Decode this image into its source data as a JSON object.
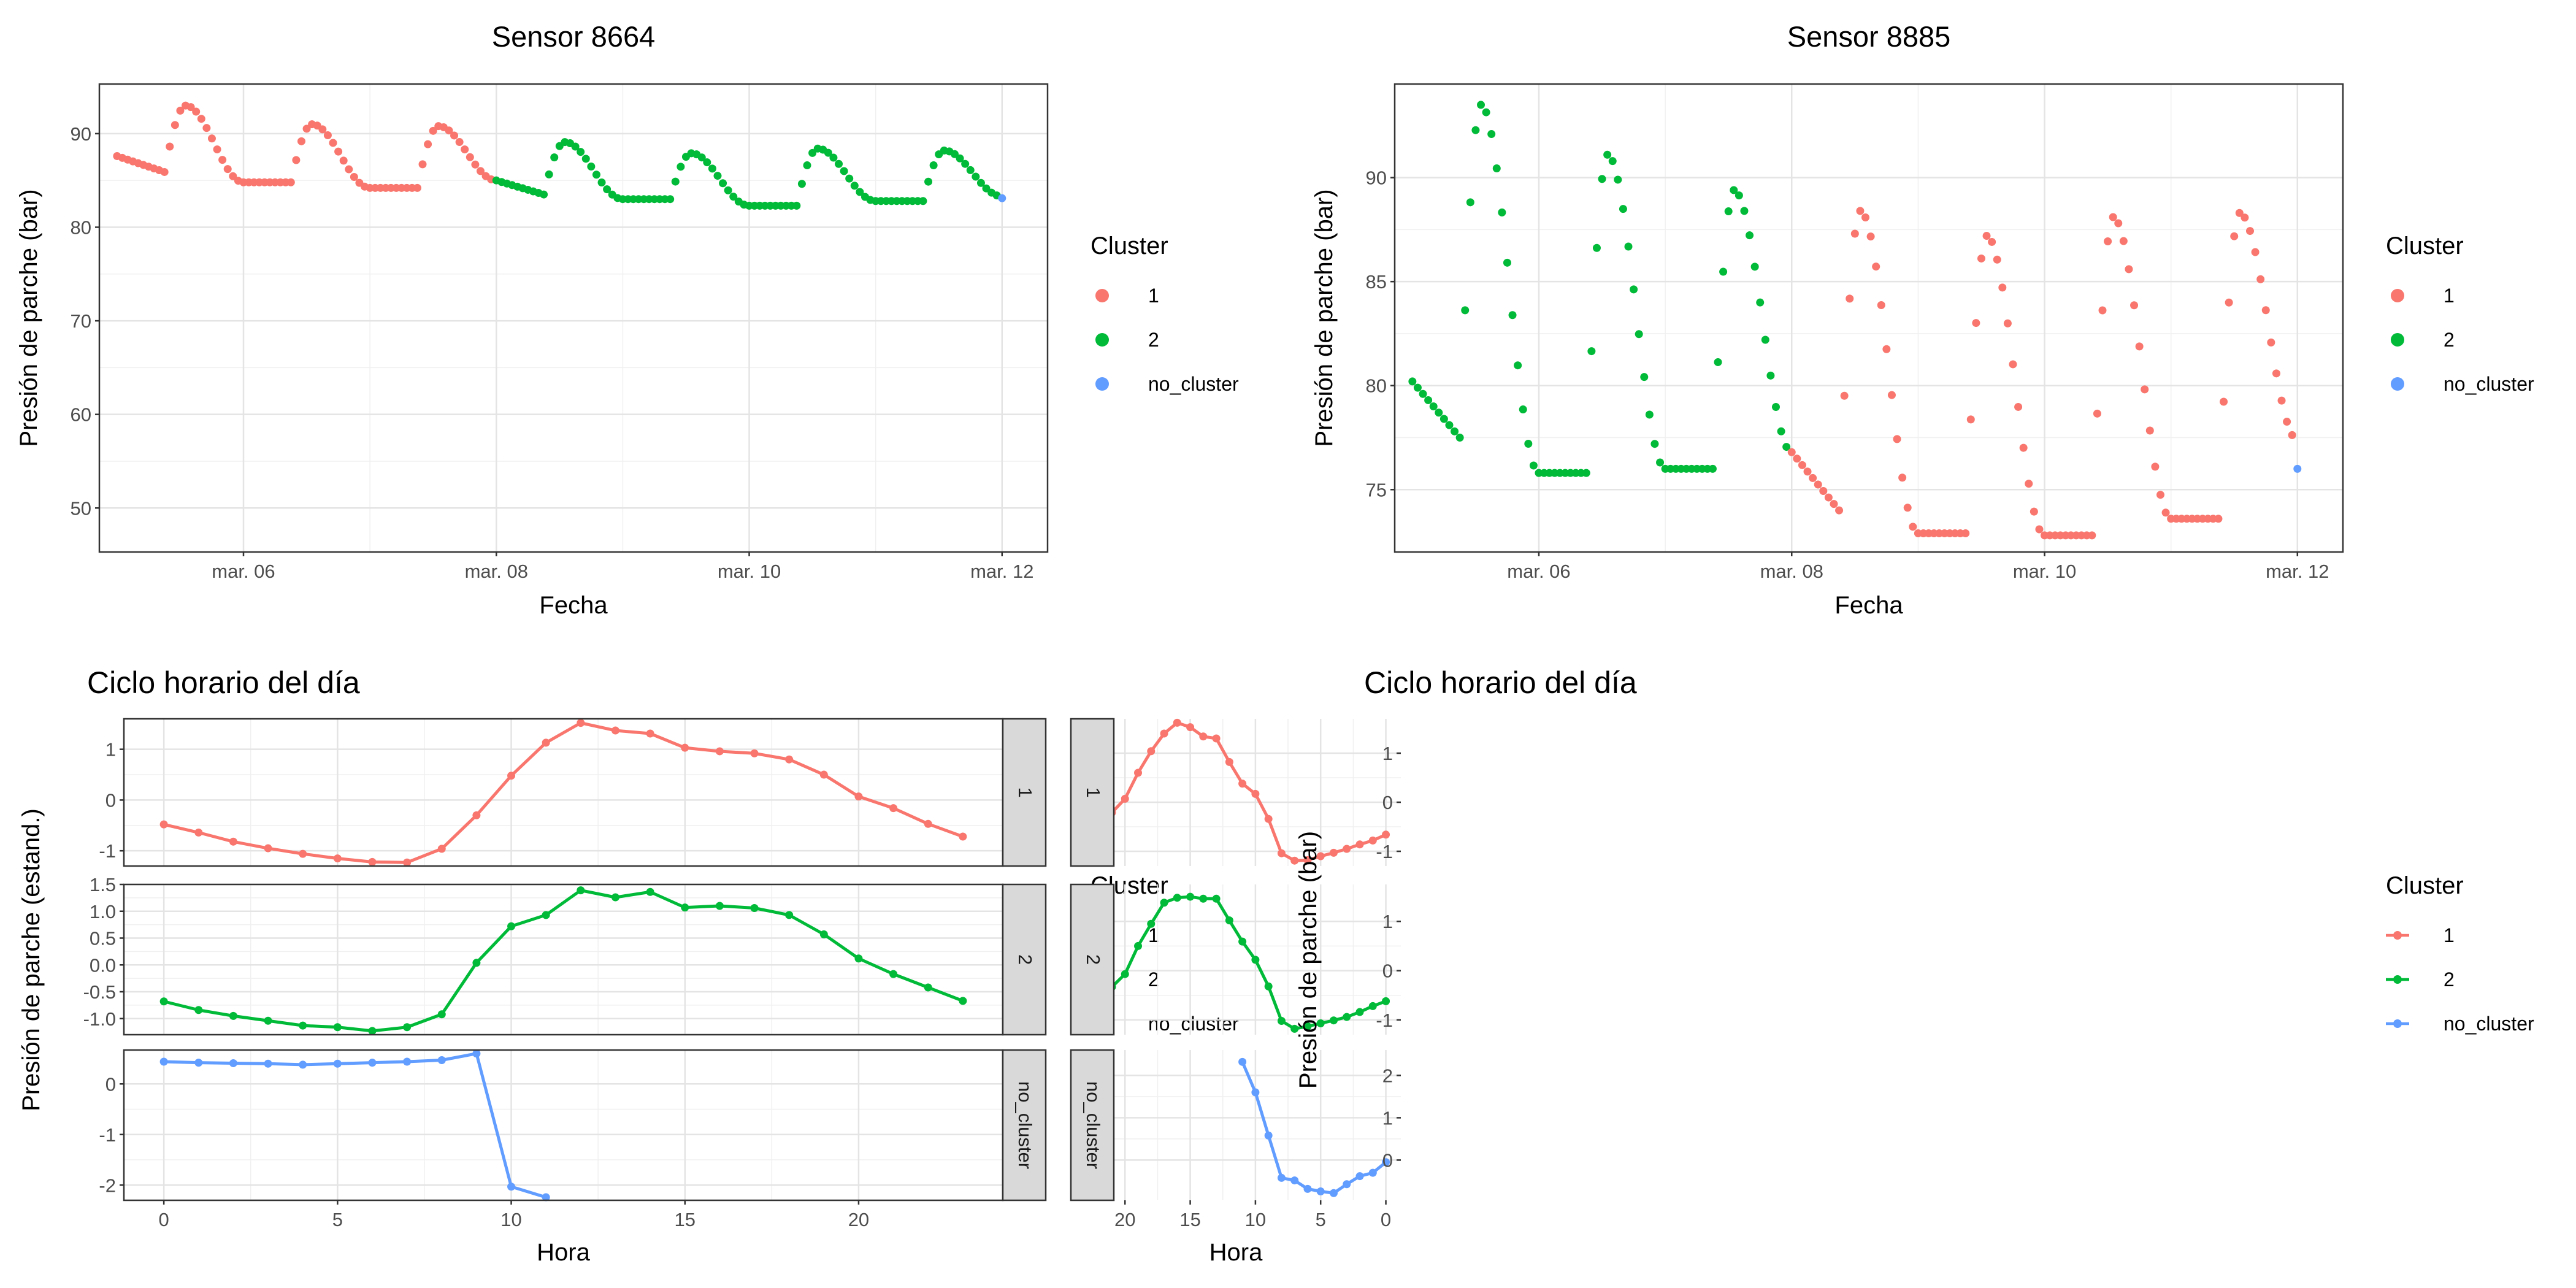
{
  "colors": {
    "cluster_1": "#F8766D",
    "cluster_2": "#00BA38",
    "no_cluster": "#619CFF"
  },
  "legend": {
    "title": "Cluster",
    "entries": [
      "1",
      "2",
      "no_cluster"
    ]
  },
  "chart_data": [
    {
      "type": "scatter",
      "title": "Sensor 8664",
      "xlabel": "Fecha",
      "ylabel": "Presión de parche (bar)",
      "x_unit": "days since mar. 05 00:00",
      "xlim": [
        -0.14,
        7.36
      ],
      "ylim": [
        45.3,
        95.3
      ],
      "x_ticks": [
        1,
        3,
        5,
        7
      ],
      "x_tick_labels": [
        "mar. 06",
        "mar. 08",
        "mar. 10",
        "mar. 12"
      ],
      "y_ticks": [
        50,
        60,
        70,
        80,
        90
      ],
      "y_tick_labels": [
        "50",
        "60",
        "70",
        "80",
        "90"
      ],
      "grid": true,
      "legend_position": "right",
      "series": [
        {
          "name": "1",
          "segments": [
            [
              0,
              1,
              87.6,
              85.9,
              93.0,
              84.8
            ],
            [
              1,
              2,
              84.8,
              84.8,
              91.0,
              84.2
            ],
            [
              2,
              3,
              84.2,
              84.2,
              90.8,
              85.0
            ]
          ]
        },
        {
          "name": "2",
          "segments": [
            [
              3,
              4,
              85.0,
              83.5,
              89.1,
              83.0
            ],
            [
              4,
              5,
              83.0,
              83.0,
              87.9,
              82.3
            ],
            [
              5,
              6,
              82.3,
              82.3,
              88.4,
              82.8
            ],
            [
              6,
              7,
              82.8,
              82.8,
              88.2,
              83.3
            ]
          ]
        },
        {
          "name": "no_cluster",
          "points": [
            [
              7.0,
              83.1
            ]
          ]
        }
      ]
    },
    {
      "type": "scatter",
      "title": "Sensor 8885",
      "xlabel": "Fecha",
      "ylabel": "Presión de parche (bar)",
      "x_unit": "days since mar. 05 00:00",
      "xlim": [
        -0.14,
        7.36
      ],
      "ylim": [
        72.0,
        94.5
      ],
      "x_ticks": [
        1,
        3,
        5,
        7
      ],
      "x_tick_labels": [
        "mar. 06",
        "mar. 08",
        "mar. 10",
        "mar. 12"
      ],
      "y_ticks": [
        75,
        80,
        85,
        90
      ],
      "y_tick_labels": [
        "75",
        "80",
        "85",
        "90"
      ],
      "grid": true,
      "legend_position": "right",
      "series": [
        {
          "name": "2",
          "segments": [
            [
              0,
              1,
              80.2,
              77.5,
              93.5,
              75.8
            ],
            [
              1,
              2,
              75.8,
              75.8,
              91.1,
              76.0
            ],
            [
              2,
              3,
              76.0,
              76.0,
              89.4,
              76.8
            ]
          ]
        },
        {
          "name": "1",
          "segments": [
            [
              3,
              4,
              76.8,
              74.0,
              88.4,
              72.9
            ],
            [
              4,
              5,
              72.9,
              72.9,
              87.2,
              72.8
            ],
            [
              5,
              6,
              72.8,
              72.8,
              88.1,
              73.6
            ],
            [
              6,
              7,
              73.6,
              73.6,
              88.3,
              77.4
            ]
          ]
        },
        {
          "name": "no_cluster",
          "points": [
            [
              7.0,
              76.0
            ]
          ]
        }
      ]
    },
    {
      "type": "line",
      "title": "Ciclo horario del día",
      "xlabel": "Hora",
      "ylabel": "Presión de parche (estand.)",
      "xlim": [
        -1.15,
        24.15
      ],
      "x_ticks": [
        0,
        5,
        10,
        15,
        20
      ],
      "x_tick_labels": [
        "0",
        "5",
        "10",
        "15",
        "20"
      ],
      "grid": true,
      "legend_position": "right",
      "facets": [
        {
          "strip": "1",
          "series": "1",
          "ylim": [
            -1.3,
            1.6
          ],
          "y_ticks": [
            -1,
            0,
            1
          ],
          "y_tick_labels": [
            "-1",
            "0",
            "1"
          ],
          "x": [
            0,
            1,
            2,
            3,
            4,
            5,
            6,
            7,
            8,
            9,
            10,
            11,
            12,
            13,
            14,
            15,
            16,
            17,
            18,
            19,
            20,
            21,
            22,
            23
          ],
          "y": [
            -0.48,
            -0.64,
            -0.82,
            -0.95,
            -1.06,
            -1.15,
            -1.22,
            -1.23,
            -0.96,
            -0.3,
            0.48,
            1.13,
            1.52,
            1.37,
            1.31,
            1.03,
            0.96,
            0.92,
            0.8,
            0.5,
            0.07,
            -0.16,
            -0.47,
            -0.72
          ]
        },
        {
          "strip": "2",
          "series": "2",
          "ylim": [
            -1.3,
            1.5
          ],
          "y_ticks": [
            -1,
            -0.5,
            0,
            0.5,
            1,
            1.5
          ],
          "y_tick_labels": [
            "-1.0",
            "-0.5",
            "0.0",
            "0.5",
            "1.0",
            "1.5"
          ],
          "x": [
            0,
            1,
            2,
            3,
            4,
            5,
            6,
            7,
            8,
            9,
            10,
            11,
            12,
            13,
            14,
            15,
            16,
            17,
            18,
            19,
            20,
            21,
            22,
            23
          ],
          "y": [
            -0.68,
            -0.84,
            -0.95,
            -1.04,
            -1.13,
            -1.16,
            -1.23,
            -1.16,
            -0.92,
            0.04,
            0.72,
            0.93,
            1.39,
            1.26,
            1.36,
            1.07,
            1.1,
            1.06,
            0.93,
            0.57,
            0.12,
            -0.17,
            -0.42,
            -0.67
          ]
        },
        {
          "strip": "no_cluster",
          "series": "no_cluster",
          "ylim": [
            -2.3,
            0.67
          ],
          "y_ticks": [
            -2,
            -1,
            0
          ],
          "y_tick_labels": [
            "-2",
            "-1",
            "0"
          ],
          "x": [
            0,
            1,
            2,
            3,
            4,
            5,
            6,
            7,
            8,
            9,
            10,
            11
          ],
          "y": [
            0.44,
            0.42,
            0.41,
            0.4,
            0.38,
            0.4,
            0.42,
            0.44,
            0.47,
            0.6,
            -2.03,
            -2.24
          ]
        }
      ]
    },
    {
      "type": "line",
      "title": "Ciclo horario del día",
      "xlabel": "Hora",
      "ylabel": "Presión de parche (bar)",
      "xlim": [
        -1.15,
        24.15
      ],
      "x_ticks": [
        0,
        5,
        10,
        15,
        20
      ],
      "x_tick_labels": [
        "0",
        "5",
        "10",
        "15",
        "20"
      ],
      "grid": true,
      "legend_position": "right",
      "facets": [
        {
          "strip": "1",
          "series": "1",
          "ylim": [
            -1.3,
            1.7
          ],
          "y_ticks": [
            -1,
            0,
            1
          ],
          "y_tick_labels": [
            "-1",
            "0",
            "1"
          ],
          "x": [
            0,
            1,
            2,
            3,
            4,
            5,
            6,
            7,
            8,
            9,
            10,
            11,
            12,
            13,
            14,
            15,
            16,
            17,
            18,
            19,
            20,
            21,
            22,
            23
          ],
          "y": [
            -0.66,
            -0.78,
            -0.86,
            -0.95,
            -1.03,
            -1.1,
            -1.18,
            -1.19,
            -1.04,
            -0.34,
            0.17,
            0.38,
            0.82,
            1.3,
            1.34,
            1.53,
            1.62,
            1.4,
            1.04,
            0.6,
            0.07,
            -0.21,
            -0.36,
            -0.55
          ]
        },
        {
          "strip": "2",
          "series": "2",
          "ylim": [
            -1.3,
            1.75
          ],
          "y_ticks": [
            -1,
            0,
            1
          ],
          "y_tick_labels": [
            "-1",
            "0",
            "1"
          ],
          "x": [
            0,
            1,
            2,
            3,
            4,
            5,
            6,
            7,
            8,
            9,
            10,
            11,
            12,
            13,
            14,
            15,
            16,
            17,
            18,
            19,
            20,
            21,
            22,
            23
          ],
          "y": [
            -0.62,
            -0.72,
            -0.84,
            -0.94,
            -1.01,
            -1.07,
            -1.13,
            -1.18,
            -1.02,
            -0.32,
            0.22,
            0.59,
            1.02,
            1.46,
            1.46,
            1.5,
            1.48,
            1.38,
            0.95,
            0.5,
            -0.07,
            -0.33,
            -0.57,
            -0.73
          ]
        },
        {
          "strip": "no_cluster",
          "series": "no_cluster",
          "ylim": [
            -0.95,
            2.6
          ],
          "y_ticks": [
            0,
            1,
            2
          ],
          "y_tick_labels": [
            "0",
            "1",
            "2"
          ],
          "x": [
            0,
            1,
            2,
            3,
            4,
            5,
            6,
            7,
            8,
            9,
            10,
            11
          ],
          "y": [
            -0.05,
            -0.3,
            -0.38,
            -0.57,
            -0.78,
            -0.74,
            -0.68,
            -0.48,
            -0.42,
            0.58,
            1.6,
            2.32
          ]
        }
      ]
    }
  ]
}
